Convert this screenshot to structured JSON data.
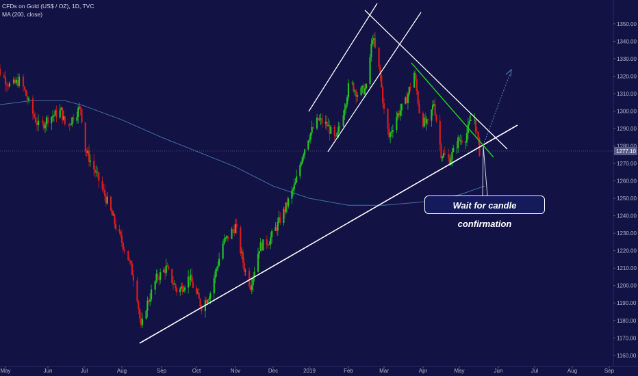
{
  "legend": {
    "symbol_line": "CFDs on Gold (US$ / OZ), 1D, TVC",
    "indicator_line": "MA (200, close)"
  },
  "annotation": {
    "text": "Wait for candle confirmation"
  },
  "price_label": "1277.10",
  "colors": {
    "background": "#131244",
    "up": "#22c322",
    "down": "#d81c1c",
    "ma": "#3f74aa",
    "trendline": "#ffffff",
    "green_line": "#1ed11e",
    "projection": "#5a8cc8",
    "axis_text": "#b5b7cc"
  },
  "chart_data": {
    "type": "candlestick",
    "title": "CFDs on Gold (US$ / OZ), 1D, TVC",
    "series": [
      {
        "name": "CFDs on Gold (US$ / OZ)",
        "kind": "candles"
      },
      {
        "name": "MA (200, close)",
        "kind": "line"
      }
    ],
    "y_ticks": [
      1160,
      1170,
      1180,
      1190,
      1200,
      1210,
      1220,
      1230,
      1240,
      1250,
      1260,
      1270,
      1280,
      1290,
      1300,
      1310,
      1320,
      1330,
      1340,
      1350
    ],
    "y_tick_labels": [
      "1160.00",
      "1170.00",
      "1180.00",
      "1190.00",
      "1200.00",
      "1210.00",
      "1220.00",
      "1230.00",
      "1240.00",
      "1250.00",
      "1260.00",
      "1270.00",
      "1280.00",
      "1290.00",
      "1300.00",
      "1310.00",
      "1320.00",
      "1330.00",
      "1340.00",
      "1350.00"
    ],
    "ylim": [
      1156,
      1357
    ],
    "x_ticks": [
      "May",
      "Jun",
      "Jul",
      "Aug",
      "Sep",
      "Oct",
      "Nov",
      "Dec",
      "2019",
      "Feb",
      "Mar",
      "Apr",
      "May",
      "Jun",
      "Jul",
      "Aug",
      "Sep"
    ],
    "current_price": 1277.1,
    "ma_200": [
      {
        "date": "2018-04-20",
        "value": 1303
      },
      {
        "date": "2018-05-20",
        "value": 1306
      },
      {
        "date": "2018-06-15",
        "value": 1306
      },
      {
        "date": "2018-07-01",
        "value": 1303
      },
      {
        "date": "2018-08-01",
        "value": 1295
      },
      {
        "date": "2018-09-01",
        "value": 1285
      },
      {
        "date": "2018-10-01",
        "value": 1277
      },
      {
        "date": "2018-11-01",
        "value": 1268
      },
      {
        "date": "2018-12-01",
        "value": 1257
      },
      {
        "date": "2019-01-01",
        "value": 1250
      },
      {
        "date": "2019-02-01",
        "value": 1246
      },
      {
        "date": "2019-03-01",
        "value": 1246
      },
      {
        "date": "2019-04-01",
        "value": 1248
      },
      {
        "date": "2019-05-01",
        "value": 1252
      },
      {
        "date": "2019-05-21",
        "value": 1257
      }
    ],
    "candle_path": [
      {
        "date": "2018-04-20",
        "close": 1332
      },
      {
        "date": "2018-04-27",
        "close": 1322
      },
      {
        "date": "2018-05-05",
        "close": 1314
      },
      {
        "date": "2018-05-12",
        "close": 1318
      },
      {
        "date": "2018-05-20",
        "close": 1300
      },
      {
        "date": "2018-05-26",
        "close": 1290
      },
      {
        "date": "2018-06-01",
        "close": 1296
      },
      {
        "date": "2018-06-07",
        "close": 1298
      },
      {
        "date": "2018-06-12",
        "close": 1300
      },
      {
        "date": "2018-06-16",
        "close": 1290
      },
      {
        "date": "2018-06-23",
        "close": 1298
      },
      {
        "date": "2018-06-28",
        "close": 1302
      },
      {
        "date": "2018-07-02",
        "close": 1278
      },
      {
        "date": "2018-07-12",
        "close": 1262
      },
      {
        "date": "2018-07-20",
        "close": 1248
      },
      {
        "date": "2018-07-28",
        "close": 1232
      },
      {
        "date": "2018-08-05",
        "close": 1218
      },
      {
        "date": "2018-08-12",
        "close": 1200
      },
      {
        "date": "2018-08-16",
        "close": 1175
      },
      {
        "date": "2018-08-20",
        "close": 1188
      },
      {
        "date": "2018-08-28",
        "close": 1204
      },
      {
        "date": "2018-09-05",
        "close": 1210
      },
      {
        "date": "2018-09-15",
        "close": 1196
      },
      {
        "date": "2018-09-25",
        "close": 1205
      },
      {
        "date": "2018-10-05",
        "close": 1188
      },
      {
        "date": "2018-10-12",
        "close": 1196
      },
      {
        "date": "2018-10-22",
        "close": 1224
      },
      {
        "date": "2018-11-01",
        "close": 1234
      },
      {
        "date": "2018-11-08",
        "close": 1210
      },
      {
        "date": "2018-11-13",
        "close": 1200
      },
      {
        "date": "2018-11-20",
        "close": 1222
      },
      {
        "date": "2018-11-28",
        "close": 1226
      },
      {
        "date": "2018-12-05",
        "close": 1235
      },
      {
        "date": "2018-12-12",
        "close": 1245
      },
      {
        "date": "2018-12-20",
        "close": 1258
      },
      {
        "date": "2018-12-26",
        "close": 1275
      },
      {
        "date": "2018-12-31",
        "close": 1285
      },
      {
        "date": "2019-01-08",
        "close": 1295
      },
      {
        "date": "2019-01-15",
        "close": 1292
      },
      {
        "date": "2019-01-22",
        "close": 1283
      },
      {
        "date": "2019-01-28",
        "close": 1300
      },
      {
        "date": "2019-02-02",
        "close": 1317
      },
      {
        "date": "2019-02-08",
        "close": 1310
      },
      {
        "date": "2019-02-15",
        "close": 1313
      },
      {
        "date": "2019-02-20",
        "close": 1343
      },
      {
        "date": "2019-02-26",
        "close": 1320
      },
      {
        "date": "2019-03-01",
        "close": 1300
      },
      {
        "date": "2019-03-05",
        "close": 1285
      },
      {
        "date": "2019-03-10",
        "close": 1296
      },
      {
        "date": "2019-03-18",
        "close": 1305
      },
      {
        "date": "2019-03-25",
        "close": 1322
      },
      {
        "date": "2019-03-30",
        "close": 1295
      },
      {
        "date": "2019-04-05",
        "close": 1292
      },
      {
        "date": "2019-04-10",
        "close": 1305
      },
      {
        "date": "2019-04-16",
        "close": 1276
      },
      {
        "date": "2019-04-23",
        "close": 1272
      },
      {
        "date": "2019-04-30",
        "close": 1283
      },
      {
        "date": "2019-05-06",
        "close": 1285
      },
      {
        "date": "2019-05-12",
        "close": 1300
      },
      {
        "date": "2019-05-17",
        "close": 1277
      }
    ]
  }
}
